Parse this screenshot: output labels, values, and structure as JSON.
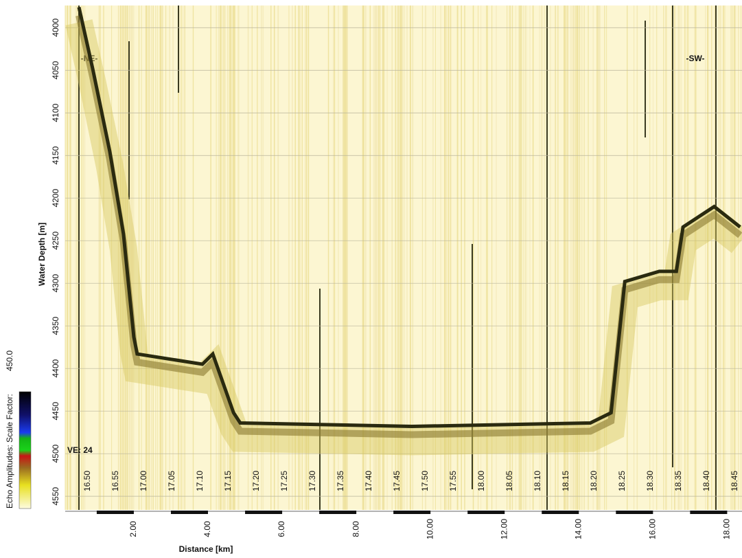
{
  "chart_data": {
    "type": "echogram",
    "ylabel": "Water Depth [m]",
    "xlabel": "Distance [km]",
    "ylim": [
      3974,
      4566
    ],
    "yticks": [
      4000,
      4050,
      4100,
      4150,
      4200,
      4250,
      4300,
      4350,
      4400,
      4450,
      4500,
      4550
    ],
    "xlim": [
      0.15,
      18.4
    ],
    "xticks": [
      {
        "value": 2,
        "label": "2.00"
      },
      {
        "value": 4,
        "label": "4.00"
      },
      {
        "value": 6,
        "label": "6.00"
      },
      {
        "value": 8,
        "label": "8.00"
      },
      {
        "value": 10,
        "label": "10.00"
      },
      {
        "value": 12,
        "label": "12.00"
      },
      {
        "value": 14,
        "label": "14.00"
      },
      {
        "value": 16,
        "label": "16.00"
      },
      {
        "value": 18,
        "label": "18.00"
      }
    ],
    "time_labels": [
      "16.50",
      "16.55",
      "17.00",
      "17.05",
      "17.10",
      "17.15",
      "17.20",
      "17.25",
      "17.30",
      "17.35",
      "17.40",
      "17.45",
      "17.50",
      "17.55",
      "18.00",
      "18.05",
      "18.10",
      "18.15",
      "18.20",
      "18.25",
      "18.30",
      "18.35",
      "18.40",
      "18.45"
    ],
    "x": [
      0.52,
      0.89,
      1.35,
      1.72,
      2.0,
      2.09,
      3.85,
      4.13,
      4.69,
      4.87,
      9.5,
      14.31,
      14.87,
      15.24,
      16.17,
      16.63,
      16.81,
      17.65,
      18.35
    ],
    "values": [
      3976,
      4048,
      4145,
      4242,
      4363,
      4383,
      4395,
      4383,
      4452,
      4464,
      4468,
      4464,
      4452,
      4298,
      4286,
      4286,
      4234,
      4210,
      4234
    ],
    "color": "#2a2a10",
    "annotations": [
      "-NE-",
      "-SW-",
      "VE: 24"
    ],
    "colorbar_label": "Echo Amplitudes:  Scale Factor:",
    "colorbar_max": "450.0"
  }
}
